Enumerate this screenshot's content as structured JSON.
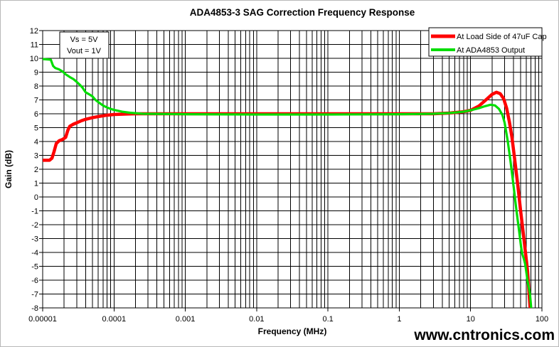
{
  "title": "ADA4853-3 SAG Correction Frequency Response",
  "watermark": "www.cntronics.com",
  "annotation": {
    "line1": "Vs = 5V",
    "line2": "Vout = 1V"
  },
  "legend": [
    {
      "label": "At Load Side of 47uF Cap",
      "color": "#ff0000"
    },
    {
      "label": "At ADA4853 Output",
      "color": "#00dd00"
    }
  ],
  "colors": {
    "grid": "#000000",
    "plot_background": "#ffffff",
    "watermark": "#c7e6bd",
    "series_red": "#ff0000",
    "series_green": "#00dd00"
  },
  "chart_data": {
    "type": "line",
    "title": "ADA4853-3 SAG Correction Frequency Response",
    "xlabel": "Frequency (MHz)",
    "ylabel": "Gain (dB)",
    "x_scale": "log",
    "xlim": [
      1e-05,
      100
    ],
    "ylim": [
      -8,
      12
    ],
    "y_tick_step": 1,
    "x_ticks": [
      1e-05,
      0.0001,
      0.001,
      0.01,
      0.1,
      1,
      10,
      100
    ],
    "x_tick_labels": [
      "0.00001",
      "0.0001",
      "0.001",
      "0.01",
      "0.1",
      "1",
      "10",
      "100"
    ],
    "grid": true,
    "legend_position": "top-right",
    "annotations": [
      "Vs = 5V",
      "Vout = 1V"
    ],
    "series": [
      {
        "name": "At Load Side of 47uF Cap",
        "color": "#ff0000",
        "stroke_width": 4.5,
        "points": [
          [
            1e-05,
            2.65
          ],
          [
            1.25e-05,
            2.65
          ],
          [
            1.35e-05,
            2.8
          ],
          [
            1.45e-05,
            3.3
          ],
          [
            1.55e-05,
            3.85
          ],
          [
            1.7e-05,
            4.05
          ],
          [
            1.9e-05,
            4.15
          ],
          [
            2.1e-05,
            4.3
          ],
          [
            2.25e-05,
            4.8
          ],
          [
            2.4e-05,
            5.1
          ],
          [
            2.7e-05,
            5.25
          ],
          [
            3e-05,
            5.35
          ],
          [
            3.5e-05,
            5.5
          ],
          [
            4e-05,
            5.6
          ],
          [
            5e-05,
            5.72
          ],
          [
            6e-05,
            5.8
          ],
          [
            7e-05,
            5.85
          ],
          [
            8e-05,
            5.9
          ],
          [
            0.0001,
            5.95
          ],
          [
            0.00015,
            5.98
          ],
          [
            0.0002,
            6.0
          ],
          [
            0.001,
            6.0
          ],
          [
            0.01,
            6.0
          ],
          [
            0.1,
            6.0
          ],
          [
            1.0,
            6.0
          ],
          [
            3.0,
            6.0
          ],
          [
            5.0,
            6.05
          ],
          [
            8.0,
            6.15
          ],
          [
            10,
            6.25
          ],
          [
            13,
            6.55
          ],
          [
            16,
            6.95
          ],
          [
            20,
            7.4
          ],
          [
            23,
            7.55
          ],
          [
            26,
            7.45
          ],
          [
            29,
            7.1
          ],
          [
            32,
            6.4
          ],
          [
            35,
            5.4
          ],
          [
            38,
            4.3
          ],
          [
            42,
            2.5
          ],
          [
            46,
            0.8
          ],
          [
            50,
            -0.9
          ],
          [
            55,
            -2.7
          ],
          [
            60,
            -4.4
          ],
          [
            63,
            -5.4
          ],
          [
            66,
            -6.9
          ],
          [
            68.5,
            -8.1
          ]
        ]
      },
      {
        "name": "At ADA4853 Output",
        "color": "#00dd00",
        "stroke_width": 3.2,
        "points": [
          [
            1e-05,
            9.95
          ],
          [
            1.3e-05,
            9.9
          ],
          [
            1.4e-05,
            9.45
          ],
          [
            1.5e-05,
            9.3
          ],
          [
            1.7e-05,
            9.2
          ],
          [
            1.9e-05,
            9.05
          ],
          [
            2.1e-05,
            8.85
          ],
          [
            2.4e-05,
            8.65
          ],
          [
            2.7e-05,
            8.5
          ],
          [
            3e-05,
            8.3
          ],
          [
            3.3e-05,
            8.1
          ],
          [
            3.6e-05,
            7.9
          ],
          [
            4e-05,
            7.55
          ],
          [
            4.5e-05,
            7.4
          ],
          [
            5e-05,
            7.25
          ],
          [
            5.5e-05,
            7.0
          ],
          [
            6e-05,
            6.85
          ],
          [
            7e-05,
            6.6
          ],
          [
            8e-05,
            6.45
          ],
          [
            9e-05,
            6.35
          ],
          [
            0.0001,
            6.28
          ],
          [
            0.00013,
            6.15
          ],
          [
            0.00017,
            6.07
          ],
          [
            0.00025,
            6.0
          ],
          [
            0.001,
            5.97
          ],
          [
            0.01,
            5.95
          ],
          [
            0.1,
            5.95
          ],
          [
            1.0,
            5.97
          ],
          [
            3.0,
            6.0
          ],
          [
            5.0,
            6.05
          ],
          [
            8.0,
            6.15
          ],
          [
            10,
            6.25
          ],
          [
            13,
            6.4
          ],
          [
            16,
            6.55
          ],
          [
            19,
            6.65
          ],
          [
            22,
            6.6
          ],
          [
            25,
            6.35
          ],
          [
            28,
            5.9
          ],
          [
            30,
            5.35
          ],
          [
            33,
            4.1
          ],
          [
            36,
            2.7
          ],
          [
            40,
            0.8
          ],
          [
            44,
            -1.0
          ],
          [
            48,
            -2.5
          ],
          [
            51,
            -3.6
          ],
          [
            53,
            -4.1
          ],
          [
            56,
            -4.5
          ],
          [
            58,
            -4.8
          ],
          [
            60,
            -5.3
          ],
          [
            63,
            -6.1
          ],
          [
            66,
            -6.6
          ],
          [
            68,
            -7.0
          ],
          [
            71,
            -8.1
          ]
        ]
      }
    ]
  }
}
